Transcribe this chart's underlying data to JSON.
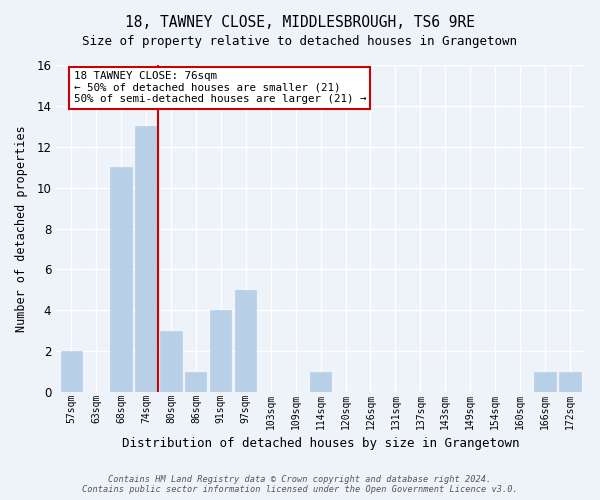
{
  "title": "18, TAWNEY CLOSE, MIDDLESBROUGH, TS6 9RE",
  "subtitle": "Size of property relative to detached houses in Grangetown",
  "xlabel": "Distribution of detached houses by size in Grangetown",
  "ylabel": "Number of detached properties",
  "bar_labels": [
    "57sqm",
    "63sqm",
    "68sqm",
    "74sqm",
    "80sqm",
    "86sqm",
    "91sqm",
    "97sqm",
    "103sqm",
    "109sqm",
    "114sqm",
    "120sqm",
    "126sqm",
    "131sqm",
    "137sqm",
    "143sqm",
    "149sqm",
    "154sqm",
    "160sqm",
    "166sqm",
    "172sqm"
  ],
  "bar_values": [
    2,
    0,
    11,
    13,
    3,
    1,
    4,
    5,
    0,
    0,
    1,
    0,
    0,
    0,
    0,
    0,
    0,
    0,
    0,
    1,
    1
  ],
  "bar_color": "#b8cfe8",
  "vline_x": 3.5,
  "vline_color": "#cc0000",
  "ylim": [
    0,
    16
  ],
  "yticks": [
    0,
    2,
    4,
    6,
    8,
    10,
    12,
    14,
    16
  ],
  "annotation_title": "18 TAWNEY CLOSE: 76sqm",
  "annotation_line1": "← 50% of detached houses are smaller (21)",
  "annotation_line2": "50% of semi-detached houses are larger (21) →",
  "annotation_box_color": "#ffffff",
  "annotation_box_edge": "#cc0000",
  "footer1": "Contains HM Land Registry data © Crown copyright and database right 2024.",
  "footer2": "Contains public sector information licensed under the Open Government Licence v3.0.",
  "background_color": "#eef2f9",
  "grid_color": "#ffffff"
}
